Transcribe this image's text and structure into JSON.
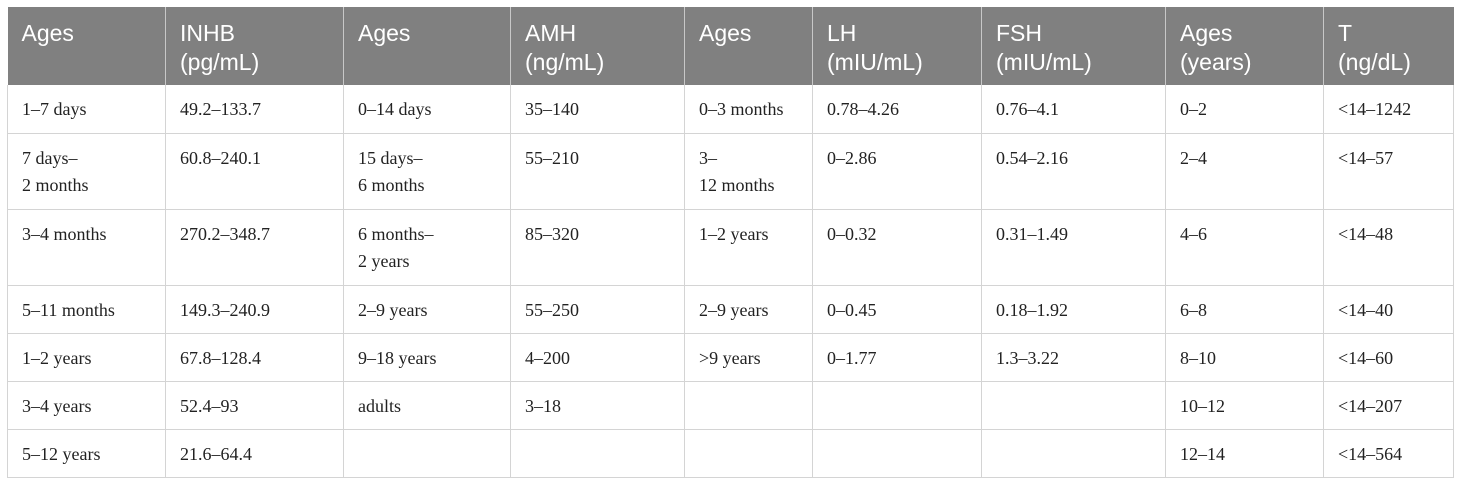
{
  "table": {
    "headers": [
      "Ages",
      "INHB\n(pg/mL)",
      "Ages",
      "AMH\n(ng/mL)",
      "Ages",
      "LH\n(mIU/mL)",
      "FSH\n(mIU/mL)",
      "Ages\n(years)",
      "T\n(ng/dL)"
    ],
    "rows": [
      [
        "1–7 days",
        "49.2–133.7",
        "0–14 days",
        "35–140",
        "0–3 months",
        "0.78–4.26",
        "0.76–4.1",
        "0–2",
        "<14–1242"
      ],
      [
        "7 days–\n2 months",
        "60.8–240.1",
        "15 days–\n6 months",
        "55–210",
        "3–\n12 months",
        "0–2.86",
        "0.54–2.16",
        "2–4",
        "<14–57"
      ],
      [
        "3–4 months",
        "270.2–348.7",
        "6 months–\n2 years",
        "85–320",
        "1–2 years",
        "0–0.32",
        "0.31–1.49",
        "4–6",
        "<14–48"
      ],
      [
        "5–11 months",
        "149.3–240.9",
        "2–9 years",
        "55–250",
        "2–9 years",
        "0–0.45",
        "0.18–1.92",
        "6–8",
        "<14–40"
      ],
      [
        "1–2 years",
        "67.8–128.4",
        "9–18 years",
        "4–200",
        ">9 years",
        "0–1.77",
        "1.3–3.22",
        "8–10",
        "<14–60"
      ],
      [
        "3–4 years",
        "52.4–93",
        "adults",
        "3–18",
        "",
        "",
        "",
        "10–12",
        "<14–207"
      ],
      [
        "5–12 years",
        "21.6–64.4",
        "",
        "",
        "",
        "",
        "",
        "12–14",
        "<14–564"
      ]
    ]
  }
}
